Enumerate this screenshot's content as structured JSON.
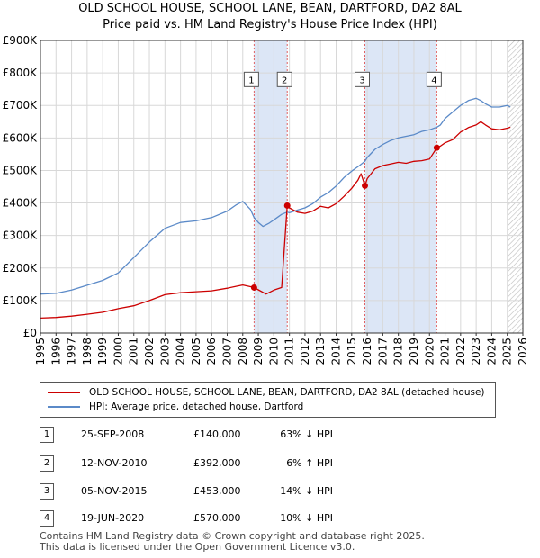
{
  "title_line1": "OLD SCHOOL HOUSE, SCHOOL LANE, BEAN, DARTFORD, DA2 8AL",
  "title_line2": "Price paid vs. HM Land Registry's House Price Index (HPI)",
  "colors": {
    "red": "#cc0000",
    "blue": "#5b8ac8",
    "shade": "#dce6f6",
    "grid": "#d8d8d8",
    "hatch": "#bbbbbb"
  },
  "chart_data": {
    "type": "line",
    "xlim": [
      1995,
      2026
    ],
    "ylim": [
      0,
      900000
    ],
    "x_ticks": [
      1995,
      1996,
      1997,
      1998,
      1999,
      2000,
      2001,
      2002,
      2003,
      2004,
      2005,
      2006,
      2007,
      2008,
      2009,
      2010,
      2011,
      2012,
      2013,
      2014,
      2015,
      2016,
      2017,
      2018,
      2019,
      2020,
      2021,
      2022,
      2023,
      2024,
      2025,
      2026
    ],
    "y_ticks": [
      {
        "value": 0,
        "label": "£0"
      },
      {
        "value": 100000,
        "label": "£100K"
      },
      {
        "value": 200000,
        "label": "£200K"
      },
      {
        "value": 300000,
        "label": "£300K"
      },
      {
        "value": 400000,
        "label": "£400K"
      },
      {
        "value": 500000,
        "label": "£500K"
      },
      {
        "value": 600000,
        "label": "£600K"
      },
      {
        "value": 700000,
        "label": "£700K"
      },
      {
        "value": 800000,
        "label": "£800K"
      },
      {
        "value": 900000,
        "label": "£900K"
      }
    ],
    "series": [
      {
        "name": "OLD SCHOOL HOUSE, SCHOOL LANE, BEAN, DARTFORD, DA2 8AL (detached house)",
        "color": "#cc0000",
        "x": [
          1995.0,
          1996.0,
          1997.0,
          1998.0,
          1999.0,
          2000.0,
          2001.0,
          2002.0,
          2003.0,
          2004.0,
          2005.0,
          2006.0,
          2007.0,
          2007.6,
          2008.0,
          2008.73,
          2009.0,
          2009.5,
          2010.0,
          2010.5,
          2010.86,
          2011.0,
          2011.5,
          2012.0,
          2012.5,
          2013.0,
          2013.5,
          2014.0,
          2014.5,
          2015.0,
          2015.4,
          2015.6,
          2015.85,
          2016.0,
          2016.5,
          2017.0,
          2017.5,
          2018.0,
          2018.5,
          2019.0,
          2019.5,
          2020.0,
          2020.47,
          2020.7,
          2021.0,
          2021.5,
          2022.0,
          2022.5,
          2023.0,
          2023.3,
          2023.6,
          2024.0,
          2024.5,
          2025.0,
          2025.2
        ],
        "y": [
          46000,
          48000,
          52000,
          58000,
          64000,
          75000,
          84000,
          100000,
          118000,
          124000,
          127000,
          130000,
          138000,
          144000,
          148000,
          140000,
          133000,
          120000,
          132000,
          140000,
          392000,
          385000,
          372000,
          368000,
          375000,
          390000,
          385000,
          398000,
          420000,
          445000,
          470000,
          490000,
          453000,
          475000,
          505000,
          515000,
          520000,
          525000,
          522000,
          528000,
          530000,
          535000,
          570000,
          575000,
          585000,
          595000,
          618000,
          632000,
          640000,
          650000,
          640000,
          628000,
          625000,
          630000,
          633000
        ]
      },
      {
        "name": "HPI: Average price, detached house, Dartford",
        "color": "#5b8ac8",
        "x": [
          1995.0,
          1996.0,
          1997.0,
          1998.0,
          1999.0,
          2000.0,
          2001.0,
          2002.0,
          2003.0,
          2004.0,
          2005.0,
          2006.0,
          2007.0,
          2007.6,
          2008.0,
          2008.5,
          2008.73,
          2009.0,
          2009.3,
          2009.7,
          2010.0,
          2010.5,
          2010.86,
          2011.0,
          2011.5,
          2012.0,
          2012.5,
          2013.0,
          2013.5,
          2014.0,
          2014.5,
          2015.0,
          2015.5,
          2015.85,
          2016.0,
          2016.5,
          2017.0,
          2017.5,
          2018.0,
          2018.5,
          2019.0,
          2019.5,
          2020.0,
          2020.47,
          2020.7,
          2021.0,
          2021.5,
          2022.0,
          2022.5,
          2023.0,
          2023.3,
          2023.6,
          2024.0,
          2024.5,
          2025.0,
          2025.2
        ],
        "y": [
          120000,
          122000,
          132000,
          147000,
          162000,
          185000,
          232000,
          280000,
          322000,
          340000,
          345000,
          355000,
          375000,
          395000,
          405000,
          380000,
          355000,
          340000,
          328000,
          338000,
          348000,
          365000,
          372000,
          370000,
          378000,
          385000,
          398000,
          418000,
          432000,
          452000,
          478000,
          498000,
          515000,
          528000,
          540000,
          565000,
          580000,
          592000,
          600000,
          605000,
          610000,
          620000,
          625000,
          633000,
          640000,
          660000,
          680000,
          700000,
          715000,
          722000,
          715000,
          705000,
          695000,
          695000,
          700000,
          695000
        ]
      }
    ],
    "sales": [
      {
        "id": "1",
        "x": 2008.73,
        "y": 140000
      },
      {
        "id": "2",
        "x": 2010.86,
        "y": 392000
      },
      {
        "id": "3",
        "x": 2015.85,
        "y": 453000
      },
      {
        "id": "4",
        "x": 2020.47,
        "y": 570000
      }
    ],
    "shaded_ranges": [
      [
        2008.73,
        2010.86
      ],
      [
        2015.85,
        2020.47
      ]
    ],
    "hatch_from": 2025.0,
    "marker_label_value": 780000
  },
  "legend": {
    "red_label": "OLD SCHOOL HOUSE, SCHOOL LANE, BEAN, DARTFORD, DA2 8AL (detached house)",
    "blue_label": "HPI: Average price, detached house, Dartford"
  },
  "transactions": [
    {
      "num": "1",
      "date": "25-SEP-2008",
      "price": "£140,000",
      "hpi": "63% ↓ HPI"
    },
    {
      "num": "2",
      "date": "12-NOV-2010",
      "price": "£392,000",
      "hpi": "6% ↑ HPI"
    },
    {
      "num": "3",
      "date": "05-NOV-2015",
      "price": "£453,000",
      "hpi": "14% ↓ HPI"
    },
    {
      "num": "4",
      "date": "19-JUN-2020",
      "price": "£570,000",
      "hpi": "10% ↓ HPI"
    }
  ],
  "footer_line1": "Contains HM Land Registry data © Crown copyright and database right 2025.",
  "footer_line2": "This data is licensed under the Open Government Licence v3.0."
}
